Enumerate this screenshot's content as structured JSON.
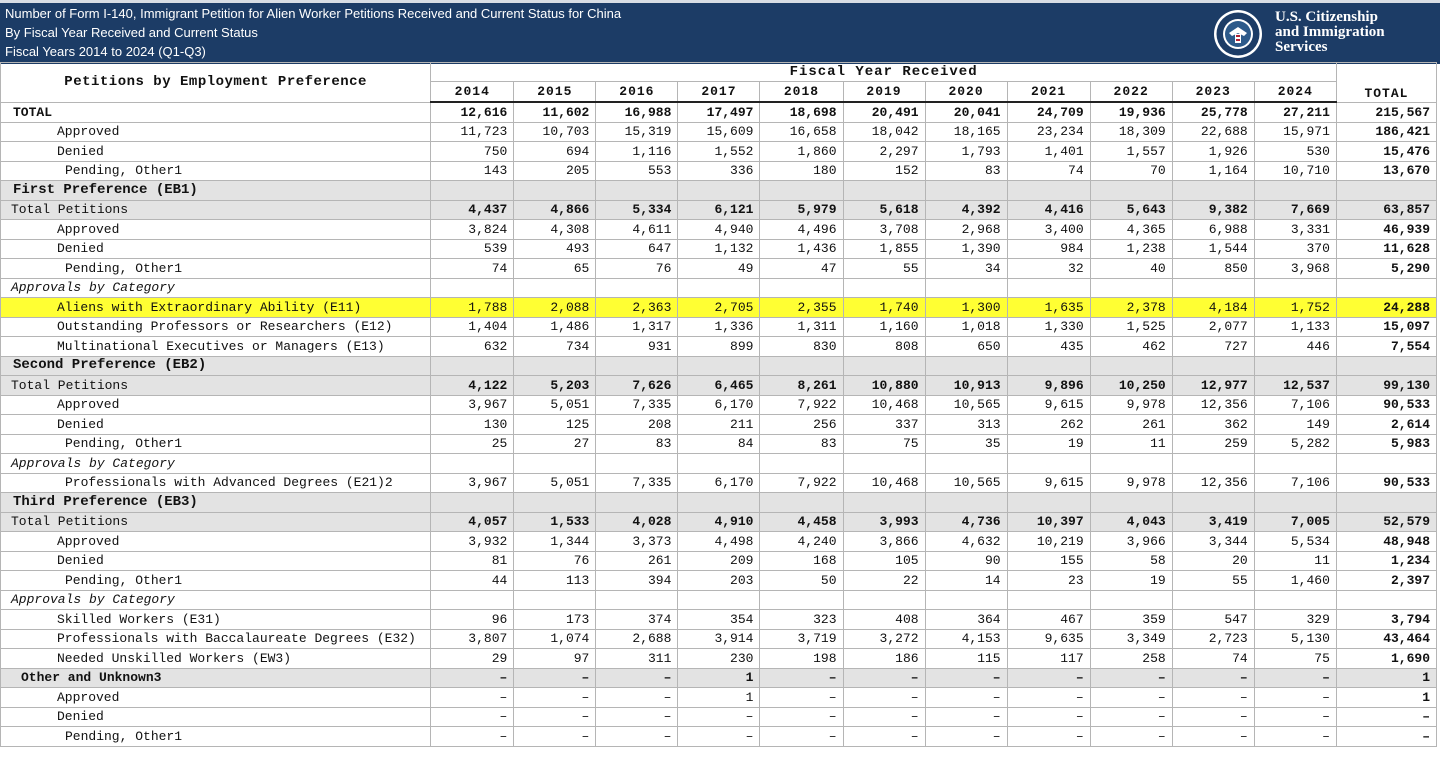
{
  "header": {
    "line1": "Number of Form I-140, Immigrant Petition for Alien Worker Petitions Received and Current Status for China",
    "line2": "By Fiscal Year Received and Current Status",
    "line3": "Fiscal Years 2014 to 2024 (Q1-Q3)",
    "agency_line1": "U.S. Citizenship",
    "agency_line2": "and Immigration",
    "agency_line3": "Services",
    "seal_text": "U.S. DEPARTMENT OF HOMELAND SECURITY"
  },
  "table": {
    "row_header": "Petitions by Employment Preference",
    "group_header": "Fiscal Year Received",
    "years": [
      "2014",
      "2015",
      "2016",
      "2017",
      "2018",
      "2019",
      "2020",
      "2021",
      "2022",
      "2023",
      "2024"
    ],
    "total_header": "TOTAL",
    "rows": [
      {
        "kind": "total",
        "label": "TOTAL",
        "values": [
          "12,616",
          "11,602",
          "16,988",
          "17,497",
          "18,698",
          "20,491",
          "20,041",
          "24,709",
          "19,936",
          "25,778",
          "27,211"
        ],
        "total": "215,567"
      },
      {
        "kind": "ind1",
        "label": "Approved",
        "values": [
          "11,723",
          "10,703",
          "15,319",
          "15,609",
          "16,658",
          "18,042",
          "18,165",
          "23,234",
          "18,309",
          "22,688",
          "15,971"
        ],
        "total": "186,421"
      },
      {
        "kind": "ind1",
        "label": "Denied",
        "values": [
          "750",
          "694",
          "1,116",
          "1,552",
          "1,860",
          "2,297",
          "1,793",
          "1,401",
          "1,557",
          "1,926",
          "530"
        ],
        "total": "15,476"
      },
      {
        "kind": "ind2",
        "label": "Pending, Other1",
        "values": [
          "143",
          "205",
          "553",
          "336",
          "180",
          "152",
          "83",
          "74",
          "70",
          "1,164",
          "10,710"
        ],
        "total": "13,670"
      },
      {
        "kind": "section",
        "label": "First Preference (EB1)"
      },
      {
        "kind": "subtotal",
        "label": "Total Petitions",
        "values": [
          "4,437",
          "4,866",
          "5,334",
          "6,121",
          "5,979",
          "5,618",
          "4,392",
          "4,416",
          "5,643",
          "9,382",
          "7,669"
        ],
        "total": "63,857"
      },
      {
        "kind": "ind1",
        "label": "Approved",
        "values": [
          "3,824",
          "4,308",
          "4,611",
          "4,940",
          "4,496",
          "3,708",
          "2,968",
          "3,400",
          "4,365",
          "6,988",
          "3,331"
        ],
        "total": "46,939"
      },
      {
        "kind": "ind1",
        "label": "Denied",
        "values": [
          "539",
          "493",
          "647",
          "1,132",
          "1,436",
          "1,855",
          "1,390",
          "984",
          "1,238",
          "1,544",
          "370"
        ],
        "total": "11,628"
      },
      {
        "kind": "ind2",
        "label": "Pending, Other1",
        "values": [
          "74",
          "65",
          "76",
          "49",
          "47",
          "55",
          "34",
          "32",
          "40",
          "850",
          "3,968"
        ],
        "total": "5,290"
      },
      {
        "kind": "category",
        "label": "Approvals by Category"
      },
      {
        "kind": "highlight",
        "label": "Aliens with Extraordinary Ability (E11)",
        "values": [
          "1,788",
          "2,088",
          "2,363",
          "2,705",
          "2,355",
          "1,740",
          "1,300",
          "1,635",
          "2,378",
          "4,184",
          "1,752"
        ],
        "total": "24,288"
      },
      {
        "kind": "ind1",
        "label": "Outstanding Professors or Researchers (E12)",
        "values": [
          "1,404",
          "1,486",
          "1,317",
          "1,336",
          "1,311",
          "1,160",
          "1,018",
          "1,330",
          "1,525",
          "2,077",
          "1,133"
        ],
        "total": "15,097"
      },
      {
        "kind": "ind1",
        "label": "Multinational Executives or Managers (E13)",
        "values": [
          "632",
          "734",
          "931",
          "899",
          "830",
          "808",
          "650",
          "435",
          "462",
          "727",
          "446"
        ],
        "total": "7,554"
      },
      {
        "kind": "section",
        "label": "Second Preference (EB2)"
      },
      {
        "kind": "subtotal",
        "label": "Total Petitions",
        "values": [
          "4,122",
          "5,203",
          "7,626",
          "6,465",
          "8,261",
          "10,880",
          "10,913",
          "9,896",
          "10,250",
          "12,977",
          "12,537"
        ],
        "total": "99,130"
      },
      {
        "kind": "ind1",
        "label": "Approved",
        "values": [
          "3,967",
          "5,051",
          "7,335",
          "6,170",
          "7,922",
          "10,468",
          "10,565",
          "9,615",
          "9,978",
          "12,356",
          "7,106"
        ],
        "total": "90,533"
      },
      {
        "kind": "ind1",
        "label": "Denied",
        "values": [
          "130",
          "125",
          "208",
          "211",
          "256",
          "337",
          "313",
          "262",
          "261",
          "362",
          "149"
        ],
        "total": "2,614"
      },
      {
        "kind": "ind2",
        "label": "Pending, Other1",
        "values": [
          "25",
          "27",
          "83",
          "84",
          "83",
          "75",
          "35",
          "19",
          "11",
          "259",
          "5,282"
        ],
        "total": "5,983"
      },
      {
        "kind": "category",
        "label": "Approvals by Category"
      },
      {
        "kind": "ind2",
        "label": "Professionals with Advanced Degrees (E21)2",
        "values": [
          "3,967",
          "5,051",
          "7,335",
          "6,170",
          "7,922",
          "10,468",
          "10,565",
          "9,615",
          "9,978",
          "12,356",
          "7,106"
        ],
        "total": "90,533"
      },
      {
        "kind": "section",
        "label": "Third Preference (EB3)"
      },
      {
        "kind": "subtotal",
        "label": "Total Petitions",
        "values": [
          "4,057",
          "1,533",
          "4,028",
          "4,910",
          "4,458",
          "3,993",
          "4,736",
          "10,397",
          "4,043",
          "3,419",
          "7,005"
        ],
        "total": "52,579"
      },
      {
        "kind": "ind1",
        "label": "Approved",
        "values": [
          "3,932",
          "1,344",
          "3,373",
          "4,498",
          "4,240",
          "3,866",
          "4,632",
          "10,219",
          "3,966",
          "3,344",
          "5,534"
        ],
        "total": "48,948"
      },
      {
        "kind": "ind1",
        "label": "Denied",
        "values": [
          "81",
          "76",
          "261",
          "209",
          "168",
          "105",
          "90",
          "155",
          "58",
          "20",
          "11"
        ],
        "total": "1,234"
      },
      {
        "kind": "ind2",
        "label": "Pending, Other1",
        "values": [
          "44",
          "113",
          "394",
          "203",
          "50",
          "22",
          "14",
          "23",
          "19",
          "55",
          "1,460"
        ],
        "total": "2,397"
      },
      {
        "kind": "category",
        "label": "Approvals by Category"
      },
      {
        "kind": "ind1",
        "label": "Skilled Workers (E31)",
        "values": [
          "96",
          "173",
          "374",
          "354",
          "323",
          "408",
          "364",
          "467",
          "359",
          "547",
          "329"
        ],
        "total": "3,794"
      },
      {
        "kind": "ind1",
        "label": "Professionals with Baccalaureate Degrees (E32)",
        "values": [
          "3,807",
          "1,074",
          "2,688",
          "3,914",
          "3,719",
          "3,272",
          "4,153",
          "9,635",
          "3,349",
          "2,723",
          "5,130"
        ],
        "total": "43,464"
      },
      {
        "kind": "ind1",
        "label": "Needed Unskilled Workers (EW3)",
        "values": [
          "29",
          "97",
          "311",
          "230",
          "198",
          "186",
          "115",
          "117",
          "258",
          "74",
          "75"
        ],
        "total": "1,690"
      },
      {
        "kind": "other",
        "label": "Other and Unknown3",
        "values": [
          "–",
          "–",
          "–",
          "1",
          "–",
          "–",
          "–",
          "–",
          "–",
          "–",
          "–"
        ],
        "total": "1"
      },
      {
        "kind": "ind1",
        "label": "Approved",
        "values": [
          "–",
          "–",
          "–",
          "1",
          "–",
          "–",
          "–",
          "–",
          "–",
          "–",
          "–"
        ],
        "total": "1"
      },
      {
        "kind": "ind1",
        "label": "Denied",
        "values": [
          "–",
          "–",
          "–",
          "–",
          "–",
          "–",
          "–",
          "–",
          "–",
          "–",
          "–"
        ],
        "total": "–"
      },
      {
        "kind": "ind2",
        "label": "Pending, Other1",
        "values": [
          "–",
          "–",
          "–",
          "–",
          "–",
          "–",
          "–",
          "–",
          "–",
          "–",
          "–"
        ],
        "total": "–"
      }
    ]
  }
}
